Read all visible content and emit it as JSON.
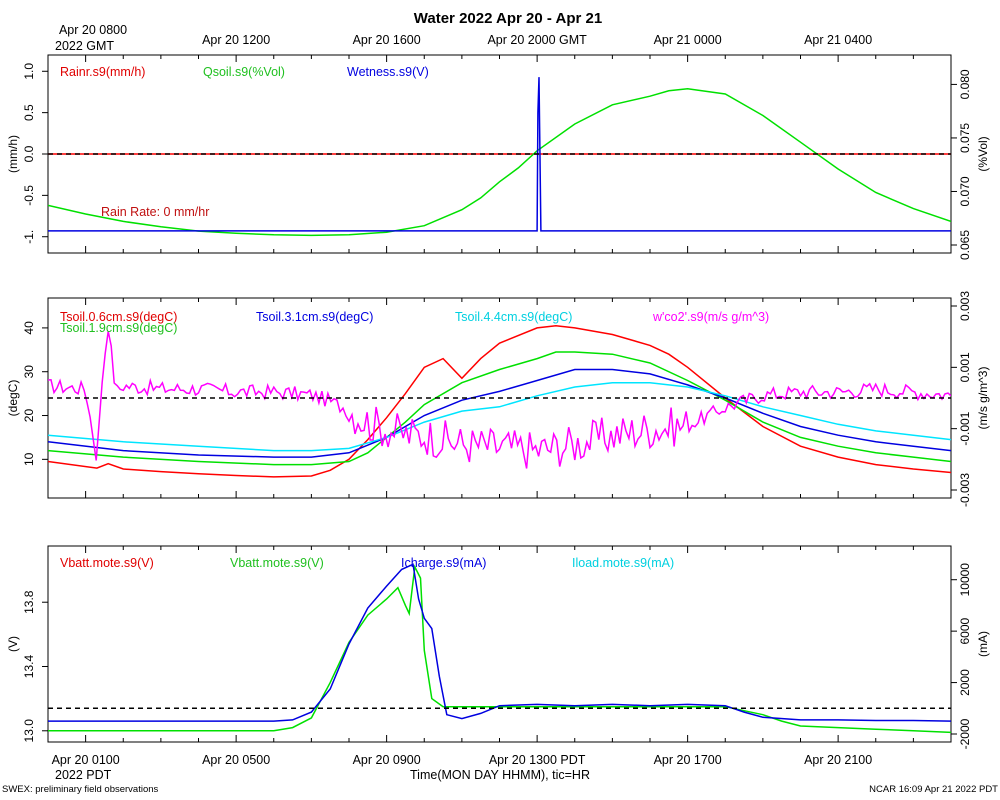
{
  "title": "Water 2022 Apr 20 - Apr 21",
  "top_axis": {
    "ticks": [
      "Apr 20 0800",
      "Apr 20 1200",
      "Apr 20 1600",
      "Apr 20 2000 GMT",
      "Apr 21 0000",
      "Apr 21 0400"
    ],
    "year": "2022 GMT"
  },
  "bottom_axis": {
    "ticks": [
      "Apr 20 0100",
      "Apr 20 0500",
      "Apr 20 0900",
      "Apr 20 1300 PDT",
      "Apr 20 1700",
      "Apr 20 2100"
    ],
    "year": "2022 PDT",
    "xlabel": "Time(MON DAY HHMM), tic=HR"
  },
  "footer": {
    "left": "SWEX: preliminary field observations",
    "right": "NCAR 16:09 Apr 21 2022 PDT"
  },
  "colors": {
    "red": "#ff0000",
    "green": "#00e000",
    "blue": "#0000e0",
    "cyan": "#00e5ff",
    "magenta": "#ff00ff",
    "text_green": "#20c020",
    "text_cyan": "#00d0e0",
    "text_red": "#e00000"
  },
  "chart_data": [
    {
      "type": "line",
      "panel": "water",
      "x_unit": "hours since Apr 20 0000 PDT",
      "xlim": [
        0,
        24
      ],
      "ylabel_left": "(mm/h)",
      "ylabel_right": "(%Vol)",
      "ylim_left": [
        -1.1,
        1.1
      ],
      "ylim_right": [
        0.065,
        0.082
      ],
      "yticks_left": [
        -1,
        -0.5,
        0,
        0.5,
        1
      ],
      "yticks_left_labels": [
        "-1.",
        "-0.5",
        "0.0",
        "0.5",
        "1.0"
      ],
      "yticks_right": [
        0.065,
        0.07,
        0.075,
        0.08
      ],
      "yticks_right_labels": [
        "0.065",
        "0.070",
        "0.075",
        "0.080"
      ],
      "legend": [
        "Rainr.s9(mm/h)",
        "Qsoil.s9(%Vol)",
        "Wetness.s9(V)"
      ],
      "annotation": "Rain Rate: 0 mm/hr",
      "reference_line_left": 0,
      "series": [
        {
          "name": "Rainr.s9(mm/h)",
          "axis": "left",
          "color": "red",
          "x": [
            0,
            24
          ],
          "y": [
            0,
            0
          ]
        },
        {
          "name": "Qsoil.s9(%Vol)",
          "axis": "right",
          "color": "green",
          "x": [
            0,
            1,
            2,
            3,
            4,
            5,
            6,
            7,
            8,
            9,
            10,
            11,
            11.5,
            12,
            12.5,
            13,
            14,
            15,
            16,
            16.5,
            17,
            18,
            19,
            20,
            21,
            22,
            23,
            24
          ],
          "y": [
            0.0687,
            0.0679,
            0.0672,
            0.0667,
            0.0663,
            0.0661,
            0.06595,
            0.0659,
            0.06595,
            0.0662,
            0.0668,
            0.0683,
            0.0694,
            0.0709,
            0.0722,
            0.0738,
            0.0763,
            0.0781,
            0.0789,
            0.0794,
            0.0796,
            0.0791,
            0.0771,
            0.0746,
            0.0721,
            0.0699,
            0.0684,
            0.0672
          ]
        },
        {
          "name": "Wetness.s9(V)",
          "axis": "left",
          "color": "blue",
          "x": [
            0,
            13.0,
            13.02,
            13.05,
            13.1,
            13.12,
            24
          ],
          "y": [
            -0.93,
            -0.93,
            0.5,
            0.93,
            -0.93,
            -0.93,
            -0.93
          ]
        }
      ]
    },
    {
      "type": "line",
      "panel": "soil temperature",
      "x_unit": "hours since Apr 20 0000 PDT",
      "xlim": [
        0,
        24
      ],
      "ylabel_left": "(degC)",
      "ylabel_right": "(m/s g/m^3)",
      "ylim_left": [
        3,
        45
      ],
      "ylim_right": [
        -0.003,
        0.003
      ],
      "yticks_left": [
        10,
        20,
        30,
        40
      ],
      "yticks_left_labels": [
        "10",
        "20",
        "30",
        "40"
      ],
      "yticks_right": [
        -0.003,
        -0.001,
        0.001,
        0.003
      ],
      "yticks_right_labels": [
        "-0.003",
        "-0.001",
        "0.001",
        "0.003"
      ],
      "legend": [
        "Tsoil.0.6cm.s9(degC)",
        "Tsoil.1.9cm.s9(degC)",
        "Tsoil.3.1cm.s9(degC)",
        "Tsoil.4.4cm.s9(degC)",
        "w'co2'.s9(m/s g/m^3)"
      ],
      "reference_line_right": 0,
      "series": [
        {
          "name": "Tsoil.0.6cm.s9(degC)",
          "axis": "left",
          "color": "red",
          "x": [
            0,
            1.3,
            1.6,
            2,
            3,
            4,
            5,
            6,
            7,
            7.5,
            8,
            8.5,
            9,
            9.5,
            10,
            10.5,
            11,
            11.5,
            12,
            13,
            13.5,
            14,
            15,
            16,
            16.5,
            17,
            18,
            19,
            20,
            21,
            22,
            23,
            24
          ],
          "y": [
            9.5,
            8.0,
            9.0,
            7.8,
            7.2,
            6.7,
            6.3,
            6.0,
            6.2,
            7.5,
            10.0,
            14.5,
            19.5,
            25.0,
            31.0,
            33.0,
            28.5,
            33.0,
            36.5,
            40.0,
            40.5,
            40.0,
            38.5,
            36.0,
            34.0,
            31.0,
            24.0,
            17.5,
            13.0,
            10.5,
            8.8,
            7.8,
            7.0
          ]
        },
        {
          "name": "Tsoil.1.9cm.s9(degC)",
          "axis": "left",
          "color": "green",
          "x": [
            0,
            2,
            4,
            6,
            7,
            8,
            8.5,
            9,
            9.5,
            10,
            11,
            12,
            13,
            13.5,
            14,
            15,
            16,
            17,
            18,
            19,
            20,
            21,
            22,
            23,
            24
          ],
          "y": [
            12.0,
            10.5,
            9.5,
            8.8,
            8.8,
            9.5,
            11.5,
            15.0,
            18.5,
            22.5,
            27.5,
            30.5,
            33.0,
            34.5,
            34.5,
            34.0,
            32.0,
            28.0,
            23.5,
            18.5,
            15.0,
            13.0,
            11.5,
            10.5,
            9.5
          ]
        },
        {
          "name": "Tsoil.3.1cm.s9(degC)",
          "axis": "left",
          "color": "blue",
          "x": [
            0,
            2,
            4,
            6,
            7,
            8,
            9,
            10,
            11,
            12,
            13,
            14,
            15,
            16,
            17,
            18,
            19,
            20,
            21,
            22,
            23,
            24
          ],
          "y": [
            14.0,
            12.0,
            11.0,
            10.5,
            10.5,
            11.5,
            15.0,
            20.0,
            23.5,
            25.5,
            28.0,
            30.5,
            30.5,
            29.5,
            27.0,
            24.0,
            20.5,
            17.5,
            15.5,
            14.0,
            13.0,
            12.0
          ]
        },
        {
          "name": "Tsoil.4.4cm.s9(degC)",
          "axis": "left",
          "color": "cyan",
          "x": [
            0,
            2,
            4,
            6,
            7,
            8,
            9,
            10,
            11,
            12,
            13,
            14,
            15,
            16,
            17,
            18,
            19,
            20,
            21,
            22,
            23,
            24
          ],
          "y": [
            15.5,
            14.0,
            13.0,
            12.0,
            12.0,
            12.5,
            15.0,
            18.5,
            21.0,
            22.0,
            24.5,
            26.5,
            27.5,
            27.5,
            26.5,
            24.5,
            22.0,
            20.0,
            18.0,
            16.5,
            15.5,
            14.5
          ]
        },
        {
          "name": "w'co2'.s9(m/s g/m^3)",
          "axis": "right",
          "color": "magenta",
          "style": "noisy",
          "x": [
            0,
            1,
            1.3,
            1.45,
            1.6,
            1.8,
            2,
            3,
            4,
            5,
            6,
            7,
            7.5,
            8,
            8.5,
            9,
            9.5,
            10,
            11,
            12,
            13,
            14,
            15,
            16,
            17,
            17.5,
            18,
            19,
            20,
            21,
            22,
            23,
            24
          ],
          "y": [
            0.0004,
            0.0003,
            -0.002,
            0.0008,
            0.0024,
            0.0002,
            0.0004,
            0.0003,
            0.0003,
            0.0002,
            0.0002,
            0.0001,
            -0.0001,
            -0.0004,
            -0.0008,
            -0.001,
            -0.0012,
            -0.0012,
            -0.0015,
            -0.0016,
            -0.0017,
            -0.0015,
            -0.0012,
            -0.001,
            -0.0009,
            -0.0006,
            -0.0003,
            0.0001,
            0.0002,
            0.0002,
            0.0003,
            0.0002,
            0.0001
          ]
        }
      ]
    },
    {
      "type": "line",
      "panel": "power",
      "x_unit": "hours since Apr 20 0000 PDT",
      "xlim": [
        0,
        24
      ],
      "ylabel_left": "(V)",
      "ylabel_right": "(mA)",
      "ylim_left": [
        12.98,
        14.1
      ],
      "ylim_right": [
        -2000,
        12000
      ],
      "yticks_left": [
        13.0,
        13.4,
        13.8
      ],
      "yticks_left_labels": [
        "13.0",
        "13.4",
        "13.8"
      ],
      "yticks_right": [
        -2000,
        2000,
        6000,
        10000
      ],
      "yticks_right_labels": [
        "-2000",
        "2000",
        "6000",
        "10000"
      ],
      "legend": [
        "Vbatt.mote.s9(V)",
        "Vbatt.mote.s9(V)",
        "Icharge.s9(mA)",
        "Iload.mote.s9(mA)"
      ],
      "reference_line_right": 0,
      "series": [
        {
          "name": "Vbatt.mote.s9(V)",
          "axis": "left",
          "color": "green",
          "x": [
            0,
            6,
            6.5,
            7,
            7.5,
            8,
            8.5,
            9,
            9.3,
            9.5,
            9.6,
            9.75,
            9.9,
            10.0,
            10.2,
            10.5,
            11,
            12,
            13,
            14,
            15,
            16,
            17,
            18,
            19,
            19.5,
            20,
            21,
            22,
            23,
            24
          ],
          "y": [
            13.0,
            13.0,
            13.02,
            13.08,
            13.3,
            13.55,
            13.72,
            13.82,
            13.89,
            13.78,
            13.73,
            14.02,
            13.95,
            13.5,
            13.2,
            13.15,
            13.15,
            13.15,
            13.15,
            13.15,
            13.15,
            13.15,
            13.15,
            13.15,
            13.1,
            13.06,
            13.03,
            13.02,
            13.01,
            13.0,
            12.99
          ]
        },
        {
          "name": "Icharge.s9(mA)",
          "axis": "right",
          "color": "blue",
          "x": [
            0,
            6,
            6.5,
            7,
            7.5,
            8,
            8.5,
            9,
            9.4,
            9.7,
            9.85,
            10.0,
            10.2,
            10.4,
            10.6,
            11,
            11.5,
            12,
            13,
            14,
            15,
            16,
            17,
            18,
            18.5,
            19,
            20,
            21,
            22,
            23,
            24
          ],
          "y": [
            -1000,
            -1000,
            -900,
            -300,
            1500,
            5000,
            7800,
            9500,
            10800,
            11200,
            8500,
            7000,
            6200,
            2500,
            -500,
            -800,
            -400,
            200,
            300,
            200,
            300,
            200,
            300,
            200,
            -300,
            -700,
            -900,
            -900,
            -950,
            -950,
            -1000
          ]
        }
      ]
    }
  ]
}
